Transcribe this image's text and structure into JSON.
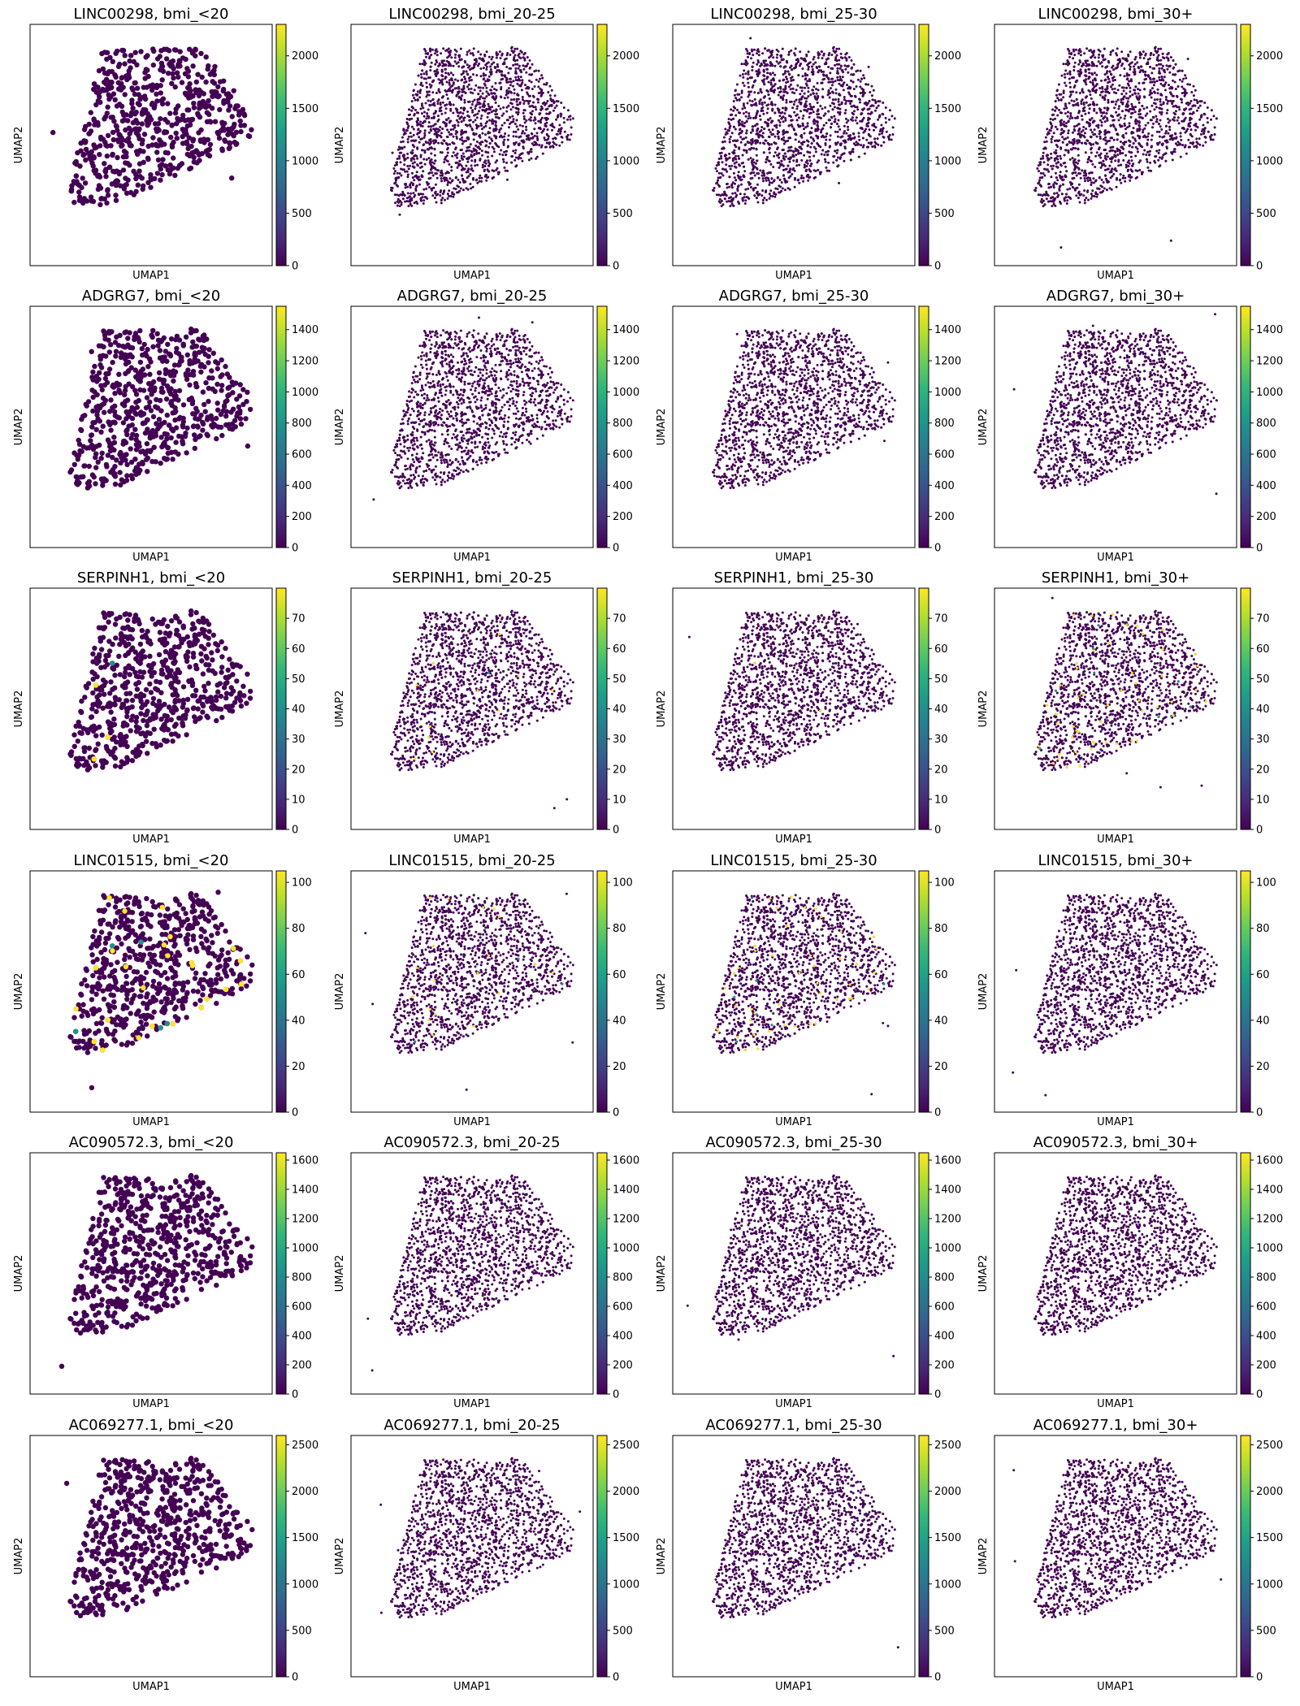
{
  "figure": {
    "xlabel": "UMAP1",
    "ylabel": "UMAP2",
    "colormap": [
      "#440154",
      "#482878",
      "#3e4989",
      "#31688e",
      "#26828e",
      "#1f9e89",
      "#35b779",
      "#6ece58",
      "#b5de2b",
      "#fde725"
    ],
    "point_color": "#440154",
    "highlight_color": "#fde725",
    "mid_color": "#21918c",
    "frame_color": "#000000"
  },
  "chart_data": [
    {
      "type": "scatter",
      "title": "LINC00298, bmi_<20",
      "xlabel": "UMAP1",
      "ylabel": "UMAP2",
      "colorbar_range": [
        0,
        2300
      ],
      "colorbar_ticks": [
        0,
        500,
        1000,
        1500,
        2000
      ],
      "highlight_fraction": 0.0
    },
    {
      "type": "scatter",
      "title": "LINC00298, bmi_20-25",
      "xlabel": "UMAP1",
      "ylabel": "UMAP2",
      "colorbar_range": [
        0,
        2300
      ],
      "colorbar_ticks": [
        0,
        500,
        1000,
        1500,
        2000
      ],
      "highlight_fraction": 0.0
    },
    {
      "type": "scatter",
      "title": "LINC00298, bmi_25-30",
      "xlabel": "UMAP1",
      "ylabel": "UMAP2",
      "colorbar_range": [
        0,
        2300
      ],
      "colorbar_ticks": [
        0,
        500,
        1000,
        1500,
        2000
      ],
      "highlight_fraction": 0.0
    },
    {
      "type": "scatter",
      "title": "LINC00298, bmi_30+",
      "xlabel": "UMAP1",
      "ylabel": "UMAP2",
      "colorbar_range": [
        0,
        2300
      ],
      "colorbar_ticks": [
        0,
        500,
        1000,
        1500,
        2000
      ],
      "highlight_fraction": 0.0
    },
    {
      "type": "scatter",
      "title": "ADGRG7, bmi_<20",
      "xlabel": "UMAP1",
      "ylabel": "UMAP2",
      "colorbar_range": [
        0,
        1550
      ],
      "colorbar_ticks": [
        0,
        200,
        400,
        600,
        800,
        1000,
        1200,
        1400
      ],
      "highlight_fraction": 0.0
    },
    {
      "type": "scatter",
      "title": "ADGRG7, bmi_20-25",
      "xlabel": "UMAP1",
      "ylabel": "UMAP2",
      "colorbar_range": [
        0,
        1550
      ],
      "colorbar_ticks": [
        0,
        200,
        400,
        600,
        800,
        1000,
        1200,
        1400
      ],
      "highlight_fraction": 0.0
    },
    {
      "type": "scatter",
      "title": "ADGRG7, bmi_25-30",
      "xlabel": "UMAP1",
      "ylabel": "UMAP2",
      "colorbar_range": [
        0,
        1550
      ],
      "colorbar_ticks": [
        0,
        200,
        400,
        600,
        800,
        1000,
        1200,
        1400
      ],
      "highlight_fraction": 0.0
    },
    {
      "type": "scatter",
      "title": "ADGRG7, bmi_30+",
      "xlabel": "UMAP1",
      "ylabel": "UMAP2",
      "colorbar_range": [
        0,
        1550
      ],
      "colorbar_ticks": [
        0,
        200,
        400,
        600,
        800,
        1000,
        1200,
        1400
      ],
      "highlight_fraction": 0.0
    },
    {
      "type": "scatter",
      "title": "SERPINH1, bmi_<20",
      "xlabel": "UMAP1",
      "ylabel": "UMAP2",
      "colorbar_range": [
        0,
        80
      ],
      "colorbar_ticks": [
        0,
        10,
        20,
        30,
        40,
        50,
        60,
        70
      ],
      "highlight_fraction": 0.01
    },
    {
      "type": "scatter",
      "title": "SERPINH1, bmi_20-25",
      "xlabel": "UMAP1",
      "ylabel": "UMAP2",
      "colorbar_range": [
        0,
        80
      ],
      "colorbar_ticks": [
        0,
        10,
        20,
        30,
        40,
        50,
        60,
        70
      ],
      "highlight_fraction": 0.01
    },
    {
      "type": "scatter",
      "title": "SERPINH1, bmi_25-30",
      "xlabel": "UMAP1",
      "ylabel": "UMAP2",
      "colorbar_range": [
        0,
        80
      ],
      "colorbar_ticks": [
        0,
        10,
        20,
        30,
        40,
        50,
        60,
        70
      ],
      "highlight_fraction": 0.005
    },
    {
      "type": "scatter",
      "title": "SERPINH1, bmi_30+",
      "xlabel": "UMAP1",
      "ylabel": "UMAP2",
      "colorbar_range": [
        0,
        80
      ],
      "colorbar_ticks": [
        0,
        10,
        20,
        30,
        40,
        50,
        60,
        70
      ],
      "highlight_fraction": 0.04
    },
    {
      "type": "scatter",
      "title": "LINC01515, bmi_<20",
      "xlabel": "UMAP1",
      "ylabel": "UMAP2",
      "colorbar_range": [
        0,
        105
      ],
      "colorbar_ticks": [
        0,
        20,
        40,
        60,
        80,
        100
      ],
      "highlight_fraction": 0.06
    },
    {
      "type": "scatter",
      "title": "LINC01515, bmi_20-25",
      "xlabel": "UMAP1",
      "ylabel": "UMAP2",
      "colorbar_range": [
        0,
        105
      ],
      "colorbar_ticks": [
        0,
        20,
        40,
        60,
        80,
        100
      ],
      "highlight_fraction": 0.015
    },
    {
      "type": "scatter",
      "title": "LINC01515, bmi_25-30",
      "xlabel": "UMAP1",
      "ylabel": "UMAP2",
      "colorbar_range": [
        0,
        105
      ],
      "colorbar_ticks": [
        0,
        20,
        40,
        60,
        80,
        100
      ],
      "highlight_fraction": 0.03
    },
    {
      "type": "scatter",
      "title": "LINC01515, bmi_30+",
      "xlabel": "UMAP1",
      "ylabel": "UMAP2",
      "colorbar_range": [
        0,
        105
      ],
      "colorbar_ticks": [
        0,
        20,
        40,
        60,
        80,
        100
      ],
      "highlight_fraction": 0.002
    },
    {
      "type": "scatter",
      "title": "AC090572.3, bmi_<20",
      "xlabel": "UMAP1",
      "ylabel": "UMAP2",
      "colorbar_range": [
        0,
        1650
      ],
      "colorbar_ticks": [
        0,
        200,
        400,
        600,
        800,
        1000,
        1200,
        1400,
        1600
      ],
      "highlight_fraction": 0.0
    },
    {
      "type": "scatter",
      "title": "AC090572.3, bmi_20-25",
      "xlabel": "UMAP1",
      "ylabel": "UMAP2",
      "colorbar_range": [
        0,
        1650
      ],
      "colorbar_ticks": [
        0,
        200,
        400,
        600,
        800,
        1000,
        1200,
        1400,
        1600
      ],
      "highlight_fraction": 0.0
    },
    {
      "type": "scatter",
      "title": "AC090572.3, bmi_25-30",
      "xlabel": "UMAP1",
      "ylabel": "UMAP2",
      "colorbar_range": [
        0,
        1650
      ],
      "colorbar_ticks": [
        0,
        200,
        400,
        600,
        800,
        1000,
        1200,
        1400,
        1600
      ],
      "highlight_fraction": 0.0
    },
    {
      "type": "scatter",
      "title": "AC090572.3, bmi_30+",
      "xlabel": "UMAP1",
      "ylabel": "UMAP2",
      "colorbar_range": [
        0,
        1650
      ],
      "colorbar_ticks": [
        0,
        200,
        400,
        600,
        800,
        1000,
        1200,
        1400,
        1600
      ],
      "highlight_fraction": 0.0
    },
    {
      "type": "scatter",
      "title": "AC069277.1, bmi_<20",
      "xlabel": "UMAP1",
      "ylabel": "UMAP2",
      "colorbar_range": [
        0,
        2600
      ],
      "colorbar_ticks": [
        0,
        500,
        1000,
        1500,
        2000,
        2500
      ],
      "highlight_fraction": 0.0
    },
    {
      "type": "scatter",
      "title": "AC069277.1, bmi_20-25",
      "xlabel": "UMAP1",
      "ylabel": "UMAP2",
      "colorbar_range": [
        0,
        2600
      ],
      "colorbar_ticks": [
        0,
        500,
        1000,
        1500,
        2000,
        2500
      ],
      "highlight_fraction": 0.0
    },
    {
      "type": "scatter",
      "title": "AC069277.1, bmi_25-30",
      "xlabel": "UMAP1",
      "ylabel": "UMAP2",
      "colorbar_range": [
        0,
        2600
      ],
      "colorbar_ticks": [
        0,
        500,
        1000,
        1500,
        2000,
        2500
      ],
      "highlight_fraction": 0.0
    },
    {
      "type": "scatter",
      "title": "AC069277.1, bmi_30+",
      "xlabel": "UMAP1",
      "ylabel": "UMAP2",
      "colorbar_range": [
        0,
        2600
      ],
      "colorbar_ticks": [
        0,
        500,
        1000,
        1500,
        2000,
        2500
      ],
      "highlight_fraction": 0.0
    }
  ]
}
